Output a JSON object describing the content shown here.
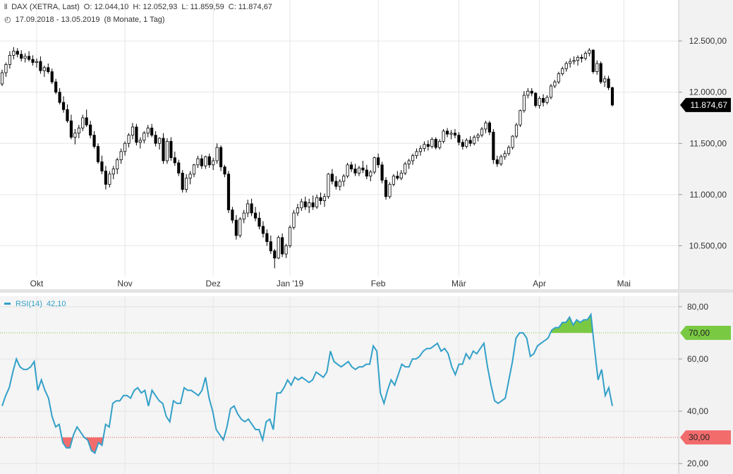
{
  "header": {
    "symbol": "DAX (XETRA, Last)",
    "open": "O: 12.044,10",
    "high": "H: 12.052,93",
    "low": "L: 11.859,59",
    "close": "C: 11.874,67",
    "date_range": "17.09.2018 - 13.05.2019",
    "period": "(8 Monate, 1 Tag)"
  },
  "colors": {
    "up_fill": "#ffffff",
    "down_fill": "#000000",
    "rsi_line": "#33a0c8",
    "overbought_fill": "#7ac943",
    "oversold_fill": "#f26c6c",
    "last_price_bg": "#000000"
  },
  "chart_data": [
    {
      "type": "candlestick",
      "title": "DAX (XETRA, Last)",
      "ylim": [
        10200,
        12900
      ],
      "y_ticks": [
        "12.500,00",
        "12.000,00",
        "11.500,00",
        "11.000,00",
        "10.500,00"
      ],
      "y_tick_values": [
        12500,
        12000,
        11500,
        11000,
        10500
      ],
      "x_ticks": [
        "Okt",
        "Nov",
        "Dez",
        "Jan '19",
        "Feb",
        "Mär",
        "Apr",
        "Mai"
      ],
      "x_tick_index": [
        9,
        32,
        55,
        75,
        98,
        119,
        140,
        162
      ],
      "last_price_label": "11.874,67",
      "last_price": 11874.67,
      "grid": true,
      "candles": [
        [
          12080,
          12220,
          12060,
          12190
        ],
        [
          12190,
          12290,
          12150,
          12270
        ],
        [
          12270,
          12400,
          12230,
          12360
        ],
        [
          12360,
          12440,
          12320,
          12400
        ],
        [
          12400,
          12430,
          12340,
          12370
        ],
        [
          12370,
          12410,
          12300,
          12330
        ],
        [
          12330,
          12380,
          12290,
          12350
        ],
        [
          12350,
          12400,
          12300,
          12320
        ],
        [
          12320,
          12360,
          12260,
          12290
        ],
        [
          12290,
          12330,
          12240,
          12300
        ],
        [
          12300,
          12350,
          12180,
          12210
        ],
        [
          12210,
          12260,
          12150,
          12240
        ],
        [
          12240,
          12280,
          12180,
          12200
        ],
        [
          12200,
          12230,
          12080,
          12100
        ],
        [
          12100,
          12130,
          11980,
          12000
        ],
        [
          12000,
          12040,
          11880,
          11900
        ],
        [
          11900,
          11960,
          11800,
          11830
        ],
        [
          11830,
          11880,
          11700,
          11720
        ],
        [
          11720,
          11780,
          11540,
          11560
        ],
        [
          11560,
          11640,
          11490,
          11600
        ],
        [
          11600,
          11680,
          11550,
          11650
        ],
        [
          11650,
          11780,
          11620,
          11750
        ],
        [
          11750,
          11830,
          11660,
          11680
        ],
        [
          11680,
          11720,
          11550,
          11580
        ],
        [
          11580,
          11620,
          11450,
          11470
        ],
        [
          11470,
          11500,
          11300,
          11320
        ],
        [
          11320,
          11380,
          11200,
          11230
        ],
        [
          11230,
          11280,
          11050,
          11100
        ],
        [
          11100,
          11230,
          11070,
          11200
        ],
        [
          11200,
          11280,
          11150,
          11250
        ],
        [
          11250,
          11360,
          11200,
          11340
        ],
        [
          11340,
          11450,
          11300,
          11420
        ],
        [
          11420,
          11520,
          11380,
          11500
        ],
        [
          11500,
          11600,
          11460,
          11580
        ],
        [
          11580,
          11700,
          11540,
          11660
        ],
        [
          11660,
          11690,
          11480,
          11510
        ],
        [
          11510,
          11560,
          11450,
          11530
        ],
        [
          11530,
          11620,
          11500,
          11600
        ],
        [
          11600,
          11680,
          11560,
          11650
        ],
        [
          11650,
          11690,
          11560,
          11580
        ],
        [
          11580,
          11620,
          11470,
          11500
        ],
        [
          11500,
          11560,
          11440,
          11550
        ],
        [
          11550,
          11600,
          11300,
          11330
        ],
        [
          11330,
          11550,
          11300,
          11520
        ],
        [
          11520,
          11560,
          11330,
          11360
        ],
        [
          11360,
          11420,
          11280,
          11310
        ],
        [
          11310,
          11340,
          11180,
          11210
        ],
        [
          11210,
          11240,
          11020,
          11050
        ],
        [
          11050,
          11200,
          11020,
          11160
        ],
        [
          11160,
          11230,
          11100,
          11200
        ],
        [
          11200,
          11300,
          11170,
          11290
        ],
        [
          11290,
          11380,
          11260,
          11350
        ],
        [
          11350,
          11390,
          11250,
          11280
        ],
        [
          11280,
          11380,
          11250,
          11370
        ],
        [
          11370,
          11400,
          11260,
          11290
        ],
        [
          11290,
          11360,
          11240,
          11330
        ],
        [
          11330,
          11500,
          11300,
          11460
        ],
        [
          11460,
          11480,
          11230,
          11270
        ],
        [
          11270,
          11290,
          11170,
          11200
        ],
        [
          11200,
          11230,
          10820,
          10850
        ],
        [
          10850,
          10880,
          10720,
          10750
        ],
        [
          10750,
          10800,
          10560,
          10600
        ],
        [
          10600,
          10780,
          10580,
          10760
        ],
        [
          10760,
          10850,
          10720,
          10820
        ],
        [
          10820,
          10950,
          10780,
          10910
        ],
        [
          10910,
          10960,
          10790,
          10820
        ],
        [
          10820,
          10880,
          10740,
          10770
        ],
        [
          10770,
          10830,
          10660,
          10690
        ],
        [
          10690,
          10740,
          10580,
          10620
        ],
        [
          10620,
          10660,
          10500,
          10540
        ],
        [
          10540,
          10600,
          10420,
          10450
        ],
        [
          10450,
          10470,
          10280,
          10380
        ],
        [
          10380,
          10600,
          10370,
          10580
        ],
        [
          10580,
          10620,
          10390,
          10420
        ],
        [
          10420,
          10520,
          10380,
          10500
        ],
        [
          10500,
          10700,
          10480,
          10680
        ],
        [
          10680,
          10850,
          10660,
          10820
        ],
        [
          10820,
          10910,
          10790,
          10870
        ],
        [
          10870,
          10960,
          10840,
          10930
        ],
        [
          10930,
          10980,
          10850,
          10880
        ],
        [
          10880,
          10960,
          10820,
          10920
        ],
        [
          10920,
          10990,
          10850,
          10880
        ],
        [
          10880,
          11000,
          10860,
          10970
        ],
        [
          10970,
          11020,
          10900,
          10940
        ],
        [
          10940,
          11010,
          10880,
          10980
        ],
        [
          10980,
          11210,
          10960,
          11200
        ],
        [
          11200,
          11250,
          11100,
          11130
        ],
        [
          11130,
          11180,
          11050,
          11080
        ],
        [
          11080,
          11150,
          11040,
          11130
        ],
        [
          11130,
          11200,
          11080,
          11180
        ],
        [
          11180,
          11310,
          11160,
          11290
        ],
        [
          11290,
          11320,
          11220,
          11250
        ],
        [
          11250,
          11300,
          11180,
          11210
        ],
        [
          11210,
          11280,
          11180,
          11260
        ],
        [
          11260,
          11330,
          11210,
          11240
        ],
        [
          11240,
          11290,
          11150,
          11180
        ],
        [
          11180,
          11240,
          11130,
          11220
        ],
        [
          11220,
          11370,
          11200,
          11360
        ],
        [
          11360,
          11400,
          11260,
          11290
        ],
        [
          11290,
          11320,
          11110,
          11140
        ],
        [
          11140,
          11170,
          10950,
          10980
        ],
        [
          10980,
          11120,
          10960,
          11100
        ],
        [
          11100,
          11200,
          11080,
          11180
        ],
        [
          11180,
          11230,
          11140,
          11160
        ],
        [
          11160,
          11240,
          11140,
          11210
        ],
        [
          11210,
          11320,
          11190,
          11300
        ],
        [
          11300,
          11350,
          11250,
          11330
        ],
        [
          11330,
          11400,
          11290,
          11380
        ],
        [
          11380,
          11450,
          11350,
          11420
        ],
        [
          11420,
          11480,
          11380,
          11450
        ],
        [
          11450,
          11520,
          11420,
          11490
        ],
        [
          11490,
          11530,
          11430,
          11470
        ],
        [
          11470,
          11560,
          11450,
          11540
        ],
        [
          11540,
          11560,
          11440,
          11460
        ],
        [
          11460,
          11540,
          11440,
          11520
        ],
        [
          11520,
          11640,
          11500,
          11620
        ],
        [
          11620,
          11650,
          11560,
          11590
        ],
        [
          11590,
          11630,
          11540,
          11600
        ],
        [
          11600,
          11640,
          11550,
          11580
        ],
        [
          11580,
          11610,
          11480,
          11510
        ],
        [
          11510,
          11540,
          11440,
          11470
        ],
        [
          11470,
          11550,
          11450,
          11530
        ],
        [
          11530,
          11570,
          11470,
          11500
        ],
        [
          11500,
          11580,
          11480,
          11560
        ],
        [
          11560,
          11600,
          11520,
          11580
        ],
        [
          11580,
          11660,
          11560,
          11640
        ],
        [
          11640,
          11720,
          11600,
          11700
        ],
        [
          11700,
          11720,
          11580,
          11610
        ],
        [
          11610,
          11640,
          11300,
          11340
        ],
        [
          11340,
          11380,
          11270,
          11300
        ],
        [
          11300,
          11390,
          11280,
          11370
        ],
        [
          11370,
          11430,
          11340,
          11400
        ],
        [
          11400,
          11480,
          11380,
          11460
        ],
        [
          11460,
          11580,
          11440,
          11570
        ],
        [
          11570,
          11700,
          11550,
          11680
        ],
        [
          11680,
          11830,
          11660,
          11820
        ],
        [
          11820,
          12010,
          11800,
          11970
        ],
        [
          11970,
          12040,
          11940,
          12010
        ],
        [
          12010,
          12040,
          11960,
          11990
        ],
        [
          11990,
          12000,
          11850,
          11870
        ],
        [
          11870,
          11960,
          11840,
          11940
        ],
        [
          11940,
          11980,
          11860,
          11900
        ],
        [
          11900,
          11970,
          11880,
          11950
        ],
        [
          11950,
          12080,
          11930,
          12060
        ],
        [
          12060,
          12120,
          12040,
          12100
        ],
        [
          12100,
          12200,
          12080,
          12180
        ],
        [
          12180,
          12250,
          12160,
          12230
        ],
        [
          12230,
          12300,
          12200,
          12280
        ],
        [
          12280,
          12330,
          12240,
          12300
        ],
        [
          12300,
          12350,
          12270,
          12310
        ],
        [
          12310,
          12360,
          12260,
          12340
        ],
        [
          12340,
          12370,
          12290,
          12330
        ],
        [
          12330,
          12400,
          12310,
          12380
        ],
        [
          12380,
          12430,
          12350,
          12410
        ],
        [
          12410,
          12420,
          12180,
          12200
        ],
        [
          12200,
          12310,
          12170,
          12280
        ],
        [
          12280,
          12300,
          12080,
          12100
        ],
        [
          12100,
          12160,
          12050,
          12130
        ],
        [
          12130,
          12160,
          12020,
          12044
        ],
        [
          12044,
          12053,
          11860,
          11875
        ]
      ]
    },
    {
      "type": "line",
      "title": "RSI(14)",
      "current_value_label": "42,10",
      "ylim": [
        16,
        84
      ],
      "y_ticks": [
        "80,00",
        "60,00",
        "40,00",
        "20,00"
      ],
      "y_tick_values": [
        80,
        60,
        40,
        20
      ],
      "overbought": 70,
      "oversold": 30,
      "overbought_label": "70,00",
      "oversold_label": "30,00",
      "grid": true,
      "series": [
        {
          "values": [
            42,
            46,
            49,
            55,
            60,
            57,
            56,
            56,
            57,
            59,
            48,
            52,
            48,
            45,
            38,
            34,
            35,
            28,
            26,
            26,
            31,
            34,
            32,
            30,
            29,
            25,
            24,
            28,
            27,
            35,
            34,
            43,
            44,
            44,
            46,
            46,
            45,
            48,
            49,
            47,
            48,
            42,
            48,
            46,
            44,
            43,
            38,
            36,
            44,
            43,
            43,
            49,
            48,
            48,
            47,
            46,
            48,
            53,
            45,
            40,
            33,
            31,
            29,
            34,
            41,
            42,
            39,
            37,
            36,
            37,
            35,
            33,
            33,
            29,
            36,
            37,
            33,
            47,
            47,
            49,
            52,
            50,
            53,
            52,
            53,
            52,
            51,
            52,
            55,
            54,
            53,
            55,
            63,
            59,
            58,
            57,
            58,
            59,
            57,
            56,
            57,
            57,
            58,
            58,
            65,
            63,
            47,
            43,
            48,
            52,
            50,
            54,
            58,
            57,
            57,
            60,
            60,
            61,
            63,
            64,
            64,
            65,
            66,
            63,
            64,
            62,
            57,
            54,
            58,
            58,
            62,
            60,
            63,
            62,
            64,
            66,
            57,
            50,
            44,
            43,
            44,
            45,
            52,
            59,
            68,
            70,
            70,
            68,
            61,
            62,
            65,
            66,
            67,
            68,
            71,
            72,
            72,
            74,
            74,
            76,
            73,
            75,
            74,
            75,
            75,
            77,
            64,
            52,
            56,
            46,
            49,
            42
          ]
        }
      ]
    }
  ]
}
